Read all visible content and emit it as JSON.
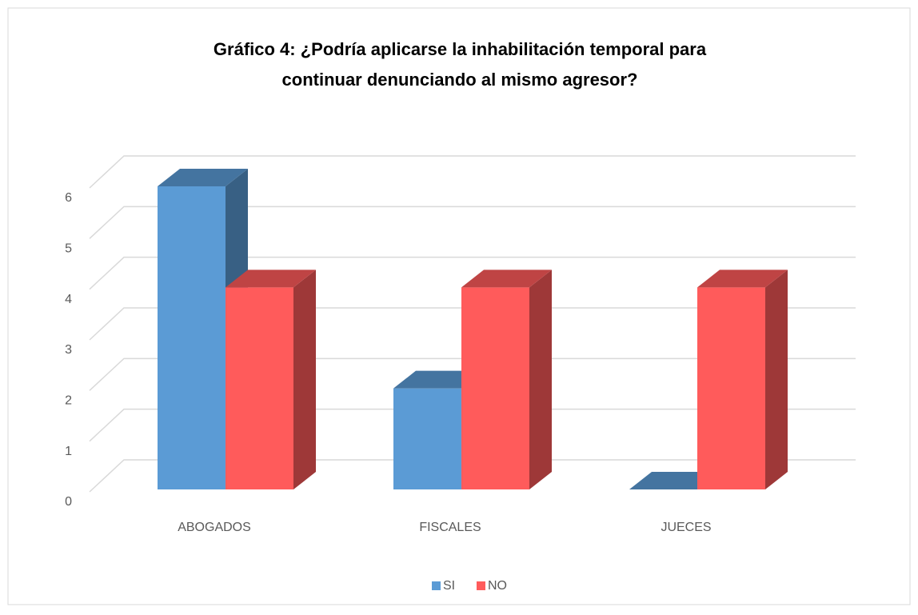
{
  "chart_data": {
    "type": "bar3d",
    "title": [
      "Gráfico 4: ¿Podría aplicarse la inhabilitación temporal para",
      "continuar denunciando al mismo agresor?"
    ],
    "categories": [
      "ABOGADOS",
      "FISCALES",
      "JUECES"
    ],
    "series": [
      {
        "name": "SI",
        "color": "#5b9bd5",
        "values": [
          6,
          2,
          0
        ]
      },
      {
        "name": "NO",
        "color": "#ff5b5b",
        "values": [
          4,
          4,
          4
        ]
      }
    ],
    "ylim": [
      0,
      6
    ],
    "yticks": [
      0,
      1,
      2,
      3,
      4,
      5,
      6
    ],
    "grid": true,
    "legend": "bottom"
  }
}
